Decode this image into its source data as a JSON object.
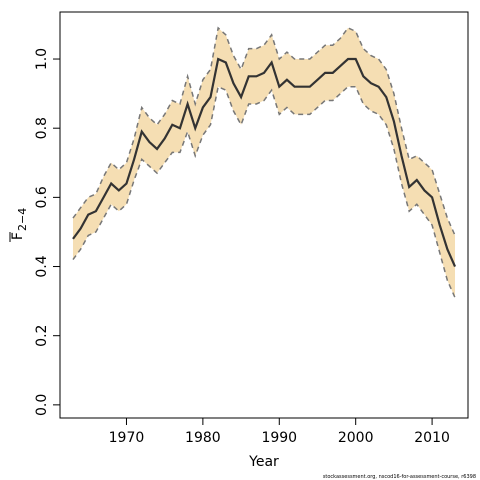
{
  "chart_data": {
    "type": "line",
    "x_label": "Year",
    "y_label": "F",
    "y_label_subscript": "2−4",
    "footnote": "stockassessment.org, nscod16-for-assessment-course, r6398",
    "x": [
      1963,
      1964,
      1965,
      1966,
      1967,
      1968,
      1969,
      1970,
      1971,
      1972,
      1973,
      1974,
      1975,
      1976,
      1977,
      1978,
      1979,
      1980,
      1981,
      1982,
      1983,
      1984,
      1985,
      1986,
      1987,
      1988,
      1989,
      1990,
      1991,
      1992,
      1993,
      1994,
      1995,
      1996,
      1997,
      1998,
      1999,
      2000,
      2001,
      2002,
      2003,
      2004,
      2005,
      2006,
      2007,
      2008,
      2009,
      2010,
      2011,
      2012,
      2013
    ],
    "values": [
      0.48,
      0.51,
      0.55,
      0.56,
      0.6,
      0.64,
      0.62,
      0.64,
      0.71,
      0.79,
      0.76,
      0.74,
      0.77,
      0.81,
      0.8,
      0.87,
      0.8,
      0.86,
      0.89,
      1.0,
      0.99,
      0.93,
      0.89,
      0.95,
      0.95,
      0.96,
      0.99,
      0.92,
      0.94,
      0.92,
      0.92,
      0.92,
      0.94,
      0.96,
      0.96,
      0.98,
      1.0,
      1.0,
      0.95,
      0.93,
      0.92,
      0.89,
      0.82,
      0.72,
      0.63,
      0.65,
      0.62,
      0.6,
      0.52,
      0.45,
      0.4
    ],
    "upper": [
      0.54,
      0.57,
      0.6,
      0.61,
      0.66,
      0.7,
      0.68,
      0.7,
      0.77,
      0.86,
      0.83,
      0.81,
      0.84,
      0.88,
      0.87,
      0.95,
      0.87,
      0.94,
      0.97,
      1.09,
      1.07,
      1.01,
      0.97,
      1.03,
      1.03,
      1.04,
      1.07,
      1.0,
      1.02,
      1.0,
      1.0,
      1.0,
      1.02,
      1.04,
      1.04,
      1.06,
      1.09,
      1.08,
      1.03,
      1.01,
      1.0,
      0.97,
      0.9,
      0.8,
      0.71,
      0.72,
      0.7,
      0.68,
      0.61,
      0.54,
      0.49
    ],
    "lower": [
      0.42,
      0.45,
      0.49,
      0.5,
      0.54,
      0.58,
      0.56,
      0.58,
      0.65,
      0.71,
      0.69,
      0.67,
      0.7,
      0.73,
      0.73,
      0.79,
      0.72,
      0.78,
      0.81,
      0.92,
      0.91,
      0.85,
      0.81,
      0.87,
      0.87,
      0.88,
      0.91,
      0.84,
      0.86,
      0.84,
      0.84,
      0.84,
      0.86,
      0.88,
      0.88,
      0.9,
      0.92,
      0.92,
      0.87,
      0.85,
      0.84,
      0.81,
      0.74,
      0.64,
      0.56,
      0.58,
      0.55,
      0.52,
      0.44,
      0.36,
      0.31
    ],
    "line_color": "#333333",
    "band_color": "#f5deb3",
    "bound_color": "#777777",
    "xlim": [
      1961.3,
      2014.7
    ],
    "ylim": [
      -0.038,
      1.136
    ],
    "xticks": [
      1970,
      1980,
      1990,
      2000,
      2010
    ],
    "yticks": [
      {
        "value": 0,
        "label": "0.0"
      },
      0.2,
      0.4,
      0.6,
      0.8,
      {
        "value": 1,
        "label": "1.0"
      }
    ]
  }
}
